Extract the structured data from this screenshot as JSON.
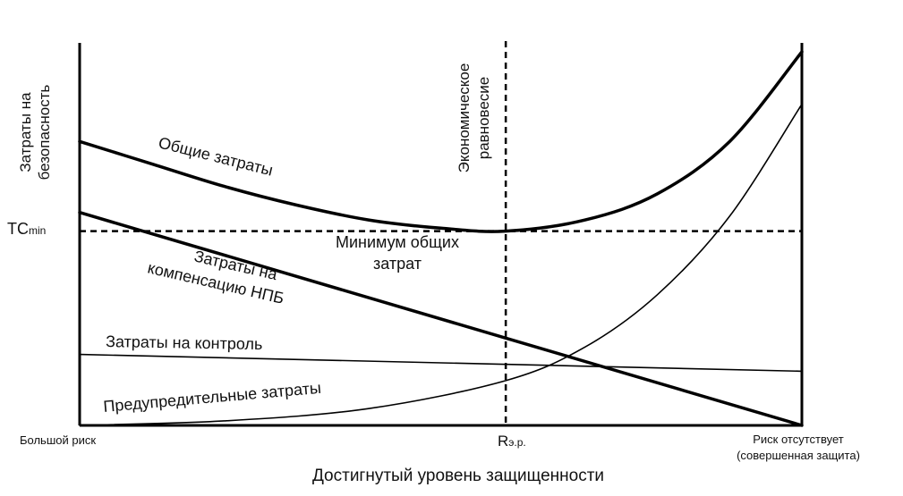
{
  "chart_data": {
    "type": "line",
    "title": "",
    "xlabel": "Достигнутый уровень защищенности",
    "ylabel_line1": "Затраты на",
    "ylabel_line2": "безопасность",
    "xlim": [
      0,
      1
    ],
    "ylim": [
      0,
      1
    ],
    "x_tick_labels": {
      "left": "Большой риск",
      "middle": "Rэ.р.",
      "right_line1": "Риск отсутствует",
      "right_line2": "(совершенная защита)"
    },
    "y_tick_label": "TCmin",
    "tc_min_value": 0.52,
    "equilibrium_x": 0.59,
    "equilibrium_label_line1": "Экономическое",
    "equilibrium_label_line2": "равновесие",
    "minimum_label_line1": "Минимум общих",
    "minimum_label_line2": "затрат",
    "series": [
      {
        "name": "Общие затраты",
        "points": [
          [
            0.0,
            0.76
          ],
          [
            0.1,
            0.7
          ],
          [
            0.2,
            0.64
          ],
          [
            0.3,
            0.59
          ],
          [
            0.4,
            0.55
          ],
          [
            0.5,
            0.528
          ],
          [
            0.59,
            0.52
          ],
          [
            0.7,
            0.55
          ],
          [
            0.8,
            0.62
          ],
          [
            0.9,
            0.76
          ],
          [
            1.0,
            1.0
          ]
        ]
      },
      {
        "name_line1": "Затраты на",
        "name_line2": "компенсацию НПБ",
        "points": [
          [
            0.0,
            0.57
          ],
          [
            1.0,
            0.0
          ]
        ]
      },
      {
        "name": "Затраты на контроль",
        "points": [
          [
            0.0,
            0.19
          ],
          [
            1.0,
            0.145
          ]
        ]
      },
      {
        "name": "Предупредительные затраты",
        "points": [
          [
            0.0,
            0.0
          ],
          [
            0.2,
            0.012
          ],
          [
            0.4,
            0.045
          ],
          [
            0.59,
            0.12
          ],
          [
            0.7,
            0.21
          ],
          [
            0.8,
            0.35
          ],
          [
            0.9,
            0.56
          ],
          [
            1.0,
            0.86
          ]
        ]
      }
    ]
  }
}
